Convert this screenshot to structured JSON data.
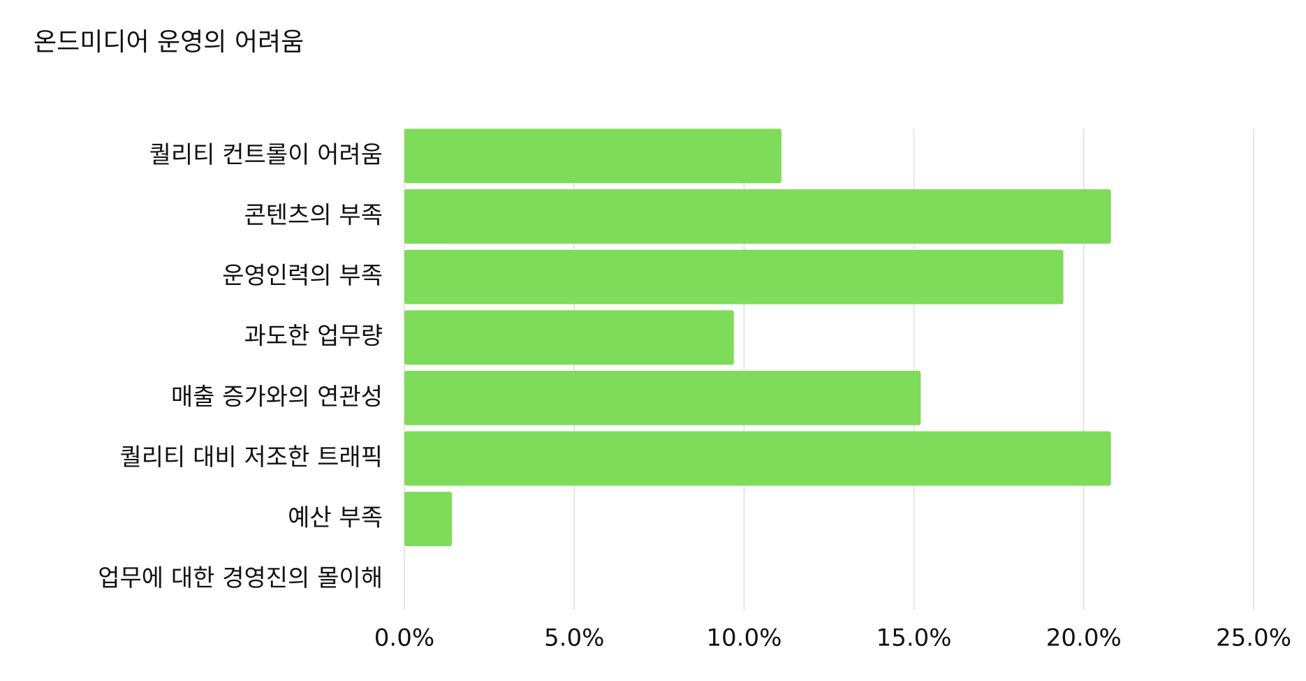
{
  "chart_data": {
    "type": "bar",
    "orientation": "horizontal",
    "title": "온드미디어 운영의 어려움",
    "categories": [
      "퀄리티 컨트롤이 어려움",
      "콘텐츠의 부족",
      "운영인력의 부족",
      "과도한 업무량",
      "매출 증가와의 연관성",
      "퀄리티 대비 저조한 트래픽",
      "예산 부족",
      "업무에 대한 경영진의 몰이해"
    ],
    "values": [
      11.1,
      20.8,
      19.4,
      9.7,
      15.2,
      20.8,
      1.4,
      0
    ],
    "color": "#7fdb5a",
    "xlim": [
      0,
      25
    ],
    "xticks": [
      {
        "value": 0,
        "label": "0.0%"
      },
      {
        "value": 5,
        "label": "5.0%"
      },
      {
        "value": 10,
        "label": "10.0%"
      },
      {
        "value": 15,
        "label": "15.0%"
      },
      {
        "value": 20,
        "label": "20.0%"
      },
      {
        "value": 25,
        "label": "25.0%"
      }
    ],
    "grid": true
  }
}
